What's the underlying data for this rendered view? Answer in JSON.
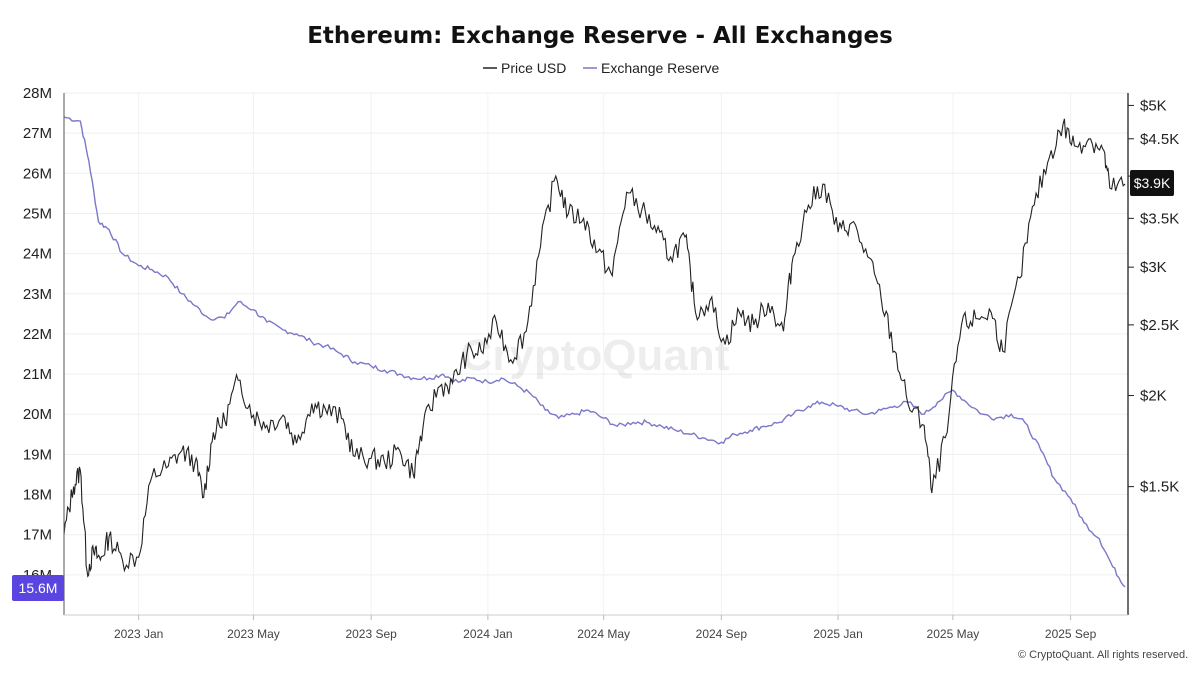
{
  "chart_data": {
    "type": "line",
    "title": "Ethereum: Exchange Reserve - All Exchanges",
    "legend": {
      "placement": "top-center",
      "entries": [
        {
          "name": "Price USD",
          "color": "#222222"
        },
        {
          "name": "Exchange Reserve",
          "color": "#7b78c8"
        }
      ]
    },
    "x_axis": {
      "type": "date",
      "range": [
        "2022-10-15",
        "2025-10-31"
      ],
      "ticks": [
        "2023-01-01",
        "2023-05-01",
        "2023-09-01",
        "2024-01-01",
        "2024-05-01",
        "2024-09-01",
        "2025-01-01",
        "2025-05-01",
        "2025-09-01"
      ],
      "tick_labels": [
        "2023 Jan",
        "2023 May",
        "2023 Sep",
        "2024 Jan",
        "2024 May",
        "2024 Sep",
        "2025 Jan",
        "2025 May",
        "2025 Sep"
      ]
    },
    "y_left": {
      "label": "",
      "range": [
        15.0,
        28.0
      ],
      "ticks": [
        16,
        17,
        18,
        19,
        20,
        21,
        22,
        23,
        24,
        25,
        26,
        27,
        28
      ],
      "tick_labels": [
        "16M",
        "17M",
        "18M",
        "19M",
        "20M",
        "21M",
        "22M",
        "23M",
        "24M",
        "25M",
        "26M",
        "27M",
        "28M"
      ]
    },
    "y_right": {
      "label": "",
      "scale": "log",
      "range": [
        1000,
        5200
      ],
      "ticks": [
        1500,
        2000,
        2500,
        3000,
        3500,
        4000,
        4500,
        5000
      ],
      "tick_labels": [
        "$1.5K",
        "$2K",
        "$2.5K",
        "$3K",
        "$3.5K",
        "",
        "$4.5K",
        "$5K"
      ]
    },
    "grid": true,
    "series": [
      {
        "name": "Exchange Reserve",
        "axis": "left",
        "color": "#7b78c8",
        "units": "ETH (millions)",
        "x": [
          "2022-10-15",
          "2022-11-01",
          "2022-11-10",
          "2022-11-20",
          "2022-12-01",
          "2022-12-15",
          "2023-01-01",
          "2023-01-15",
          "2023-02-01",
          "2023-02-15",
          "2023-03-01",
          "2023-03-15",
          "2023-04-01",
          "2023-04-15",
          "2023-05-01",
          "2023-05-15",
          "2023-06-01",
          "2023-06-15",
          "2023-07-01",
          "2023-07-15",
          "2023-08-01",
          "2023-08-15",
          "2023-09-01",
          "2023-09-15",
          "2023-10-01",
          "2023-10-15",
          "2023-11-01",
          "2023-11-15",
          "2023-12-01",
          "2023-12-15",
          "2024-01-01",
          "2024-01-15",
          "2024-02-01",
          "2024-02-15",
          "2024-03-01",
          "2024-03-15",
          "2024-04-01",
          "2024-04-15",
          "2024-05-01",
          "2024-05-15",
          "2024-06-01",
          "2024-06-15",
          "2024-07-01",
          "2024-07-15",
          "2024-08-01",
          "2024-08-15",
          "2024-09-01",
          "2024-09-15",
          "2024-10-01",
          "2024-10-15",
          "2024-11-01",
          "2024-11-15",
          "2024-12-01",
          "2024-12-15",
          "2025-01-01",
          "2025-01-15",
          "2025-02-01",
          "2025-02-15",
          "2025-03-01",
          "2025-03-15",
          "2025-04-01",
          "2025-04-15",
          "2025-05-01",
          "2025-05-15",
          "2025-06-01",
          "2025-06-15",
          "2025-07-01",
          "2025-07-15",
          "2025-08-01",
          "2025-08-15",
          "2025-09-01",
          "2025-09-15",
          "2025-10-01",
          "2025-10-15",
          "2025-10-28"
        ],
        "y": [
          27.4,
          27.3,
          26.3,
          24.8,
          24.6,
          24.0,
          23.7,
          23.6,
          23.4,
          23.0,
          22.7,
          22.4,
          22.4,
          22.8,
          22.6,
          22.3,
          22.1,
          22.0,
          21.8,
          21.7,
          21.5,
          21.3,
          21.2,
          21.1,
          21.0,
          20.9,
          20.9,
          21.0,
          20.8,
          20.9,
          20.8,
          20.9,
          20.7,
          20.5,
          20.1,
          19.9,
          20.0,
          20.1,
          19.9,
          19.7,
          19.8,
          19.8,
          19.7,
          19.6,
          19.5,
          19.4,
          19.3,
          19.5,
          19.6,
          19.7,
          19.8,
          20.0,
          20.2,
          20.3,
          20.2,
          20.1,
          20.0,
          20.1,
          20.2,
          20.3,
          20.0,
          20.3,
          20.6,
          20.3,
          20.0,
          19.9,
          20.0,
          19.8,
          19.1,
          18.4,
          17.9,
          17.3,
          16.9,
          16.2,
          15.7
        ]
      },
      {
        "name": "Price USD",
        "axis": "right",
        "color": "#222222",
        "units": "USD",
        "x": [
          "2022-10-15",
          "2022-10-25",
          "2022-11-01",
          "2022-11-08",
          "2022-11-15",
          "2022-11-22",
          "2022-12-01",
          "2022-12-15",
          "2023-01-01",
          "2023-01-15",
          "2023-02-01",
          "2023-02-15",
          "2023-03-01",
          "2023-03-10",
          "2023-03-20",
          "2023-04-01",
          "2023-04-15",
          "2023-05-01",
          "2023-05-15",
          "2023-06-01",
          "2023-06-15",
          "2023-07-01",
          "2023-07-15",
          "2023-08-01",
          "2023-08-15",
          "2023-09-01",
          "2023-09-15",
          "2023-10-01",
          "2023-10-15",
          "2023-10-25",
          "2023-11-10",
          "2023-11-25",
          "2023-12-10",
          "2023-12-25",
          "2024-01-10",
          "2024-01-25",
          "2024-02-10",
          "2024-02-25",
          "2024-03-12",
          "2024-03-25",
          "2024-04-10",
          "2024-04-25",
          "2024-05-10",
          "2024-05-25",
          "2024-06-10",
          "2024-06-25",
          "2024-07-10",
          "2024-07-25",
          "2024-08-05",
          "2024-08-20",
          "2024-09-05",
          "2024-09-20",
          "2024-10-05",
          "2024-10-20",
          "2024-11-05",
          "2024-11-15",
          "2024-12-01",
          "2024-12-16",
          "2025-01-01",
          "2025-01-15",
          "2025-02-01",
          "2025-02-15",
          "2025-03-01",
          "2025-03-15",
          "2025-04-01",
          "2025-04-09",
          "2025-04-25",
          "2025-05-10",
          "2025-05-25",
          "2025-06-10",
          "2025-06-22",
          "2025-07-10",
          "2025-07-25",
          "2025-08-10",
          "2025-08-24",
          "2025-09-05",
          "2025-09-20",
          "2025-10-05",
          "2025-10-12",
          "2025-10-28"
        ],
        "y": [
          1290,
          1500,
          1580,
          1150,
          1220,
          1190,
          1280,
          1190,
          1200,
          1550,
          1600,
          1680,
          1620,
          1450,
          1780,
          1850,
          2100,
          1880,
          1820,
          1880,
          1720,
          1950,
          1920,
          1860,
          1650,
          1640,
          1620,
          1680,
          1560,
          1800,
          2050,
          2080,
          2280,
          2300,
          2520,
          2240,
          2450,
          3200,
          4000,
          3550,
          3500,
          3150,
          2920,
          3800,
          3600,
          3350,
          3100,
          3300,
          2600,
          2700,
          2350,
          2600,
          2500,
          2680,
          2450,
          3100,
          3650,
          3900,
          3350,
          3450,
          3100,
          2720,
          2300,
          1950,
          1820,
          1470,
          1780,
          2500,
          2550,
          2600,
          2300,
          2900,
          3650,
          4250,
          4700,
          4400,
          4500,
          4350,
          3850,
          3900
        ]
      }
    ],
    "current_values": {
      "reserve_badge": "15.6M",
      "price_badge": "$3.9K",
      "reserve_badge_color": "#5b45e0",
      "price_badge_color": "#111111"
    },
    "watermark": "CryptoQuant",
    "copyright": "© CryptoQuant. All rights reserved."
  }
}
